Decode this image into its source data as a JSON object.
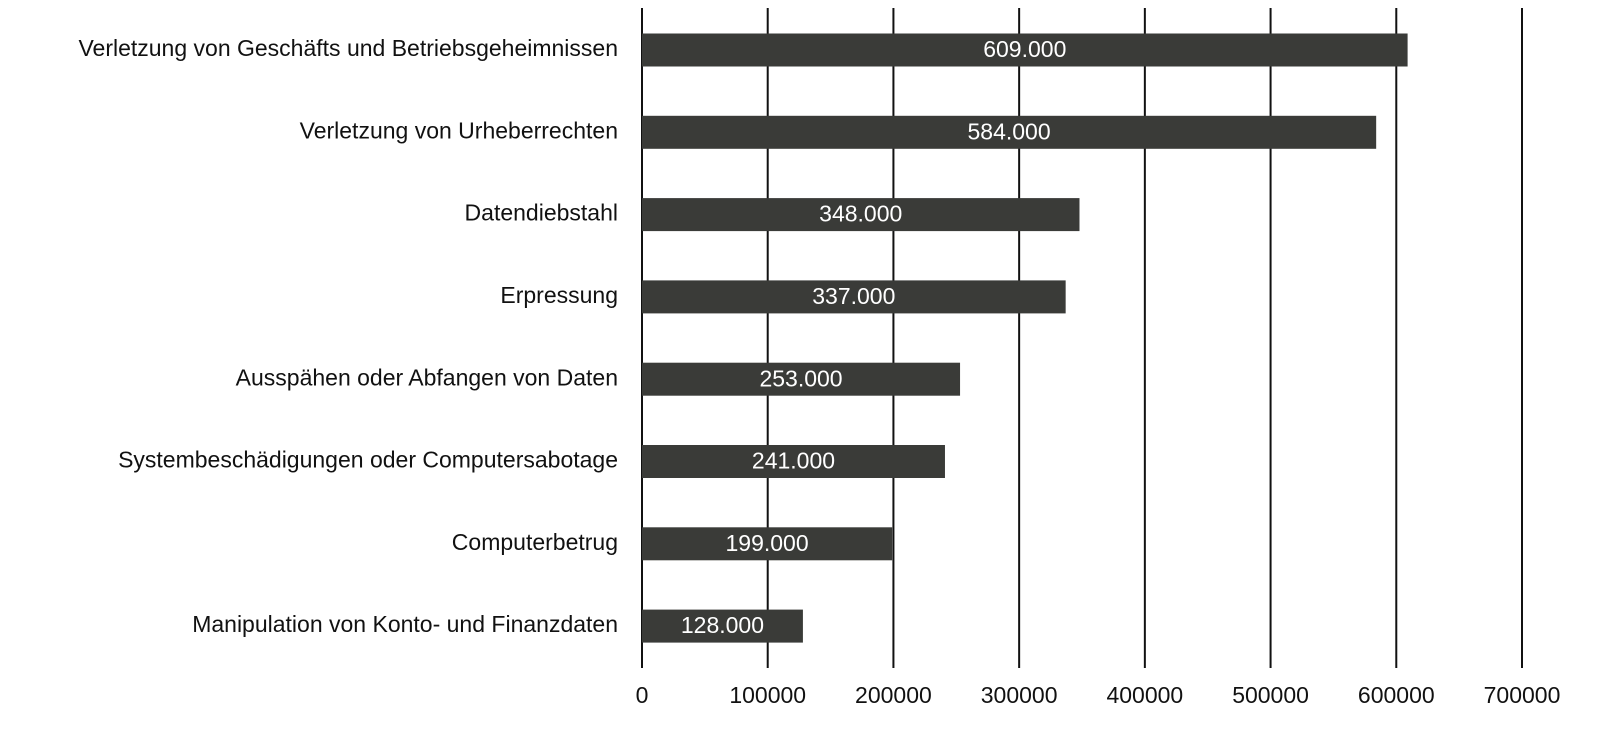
{
  "chart_data": {
    "type": "barh",
    "categories": [
      "Verletzung von Geschäfts und Betriebsgeheimnissen",
      "Verletzung von Urheberrechten",
      "Datendiebstahl",
      "Erpressung",
      "Ausspähen oder Abfangen von Daten",
      "Systembeschädigungen oder Computersabotage",
      "Computerbetrug",
      "Manipulation von Konto- und Finanzdaten"
    ],
    "values": [
      609000,
      584000,
      348000,
      337000,
      253000,
      241000,
      199000,
      128000
    ],
    "value_labels": [
      "609.000",
      "584.000",
      "348.000",
      "337.000",
      "253.000",
      "241.000",
      "199.000",
      "128.000"
    ],
    "color": "#3a3b38",
    "xlim": [
      0,
      700000
    ],
    "xticks": [
      0,
      100000,
      200000,
      300000,
      400000,
      500000,
      600000,
      700000
    ],
    "grid": true
  }
}
